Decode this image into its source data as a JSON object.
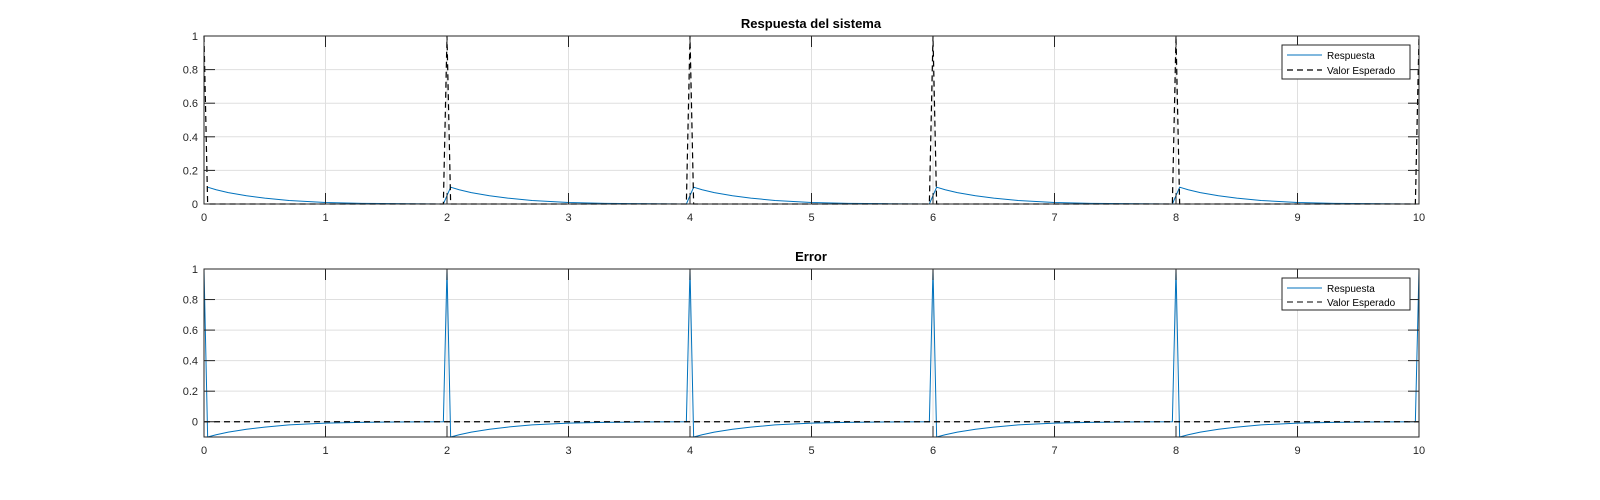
{
  "figure": {
    "background": "#ffffff",
    "axes_color": "#262626",
    "grid_color": "#dfdfdf"
  },
  "chart_data": [
    {
      "type": "line",
      "title": "Respuesta del sistema",
      "xlabel": "",
      "ylabel": "",
      "xlim": [
        0,
        10
      ],
      "ylim": [
        0,
        1
      ],
      "xticks": [
        "0",
        "1",
        "2",
        "3",
        "4",
        "5",
        "6",
        "7",
        "8",
        "9",
        "10"
      ],
      "yticks": [
        "0",
        "0.2",
        "0.4",
        "0.6",
        "0.8",
        "1"
      ],
      "grid": true,
      "legend_position": "top-right",
      "series": [
        {
          "name": "Respuesta",
          "style": "solid",
          "color": "#0072bd",
          "x": [
            0.03,
            0.1,
            0.2,
            0.35,
            0.5,
            0.7,
            1.0,
            1.3,
            1.6,
            1.97,
            2.03,
            2.1,
            2.2,
            2.35,
            2.5,
            2.7,
            3.0,
            3.3,
            3.6,
            3.97,
            4.03,
            4.1,
            4.2,
            4.35,
            4.5,
            4.7,
            5.0,
            5.3,
            5.6,
            5.97,
            6.03,
            6.1,
            6.2,
            6.35,
            6.5,
            6.7,
            7.0,
            7.3,
            7.6,
            7.97,
            8.03,
            8.1,
            8.2,
            8.35,
            8.5,
            8.7,
            9.0,
            9.3,
            9.6,
            9.97
          ],
          "y": [
            0.1,
            0.085,
            0.068,
            0.049,
            0.035,
            0.021,
            0.009,
            0.004,
            0.002,
            0.0,
            0.1,
            0.085,
            0.068,
            0.049,
            0.035,
            0.021,
            0.009,
            0.004,
            0.002,
            0.0,
            0.1,
            0.085,
            0.068,
            0.049,
            0.035,
            0.021,
            0.009,
            0.004,
            0.002,
            0.0,
            0.1,
            0.085,
            0.068,
            0.049,
            0.035,
            0.021,
            0.009,
            0.004,
            0.002,
            0.0,
            0.1,
            0.085,
            0.068,
            0.049,
            0.035,
            0.021,
            0.009,
            0.004,
            0.002,
            0.0
          ]
        },
        {
          "name": "Valor Esperado",
          "style": "dashed",
          "color": "#000000",
          "x": [
            0.0,
            0.03,
            1.97,
            2.0,
            2.03,
            3.97,
            4.0,
            4.03,
            5.97,
            6.0,
            6.03,
            7.97,
            8.0,
            8.03,
            9.97,
            10.0
          ],
          "y": [
            1.0,
            0.0,
            0.0,
            1.0,
            0.0,
            0.0,
            1.0,
            0.0,
            0.0,
            1.0,
            0.0,
            0.0,
            1.0,
            0.0,
            0.0,
            1.0
          ]
        }
      ]
    },
    {
      "type": "line",
      "title": "Error",
      "xlabel": "",
      "ylabel": "",
      "xlim": [
        0,
        10
      ],
      "ylim": [
        -0.1,
        1
      ],
      "xticks": [
        "0",
        "1",
        "2",
        "3",
        "4",
        "5",
        "6",
        "7",
        "8",
        "9",
        "10"
      ],
      "yticks": [
        "0",
        "0.2",
        "0.4",
        "0.6",
        "0.8",
        "1"
      ],
      "grid": true,
      "legend_position": "top-right",
      "series": [
        {
          "name": "Respuesta",
          "style": "solid",
          "color": "#0072bd",
          "x": [
            0.0,
            0.03,
            0.1,
            0.2,
            0.35,
            0.5,
            0.7,
            1.0,
            1.3,
            1.6,
            1.97,
            2.0,
            2.03,
            2.1,
            2.2,
            2.35,
            2.5,
            2.7,
            3.0,
            3.3,
            3.6,
            3.97,
            4.0,
            4.03,
            4.1,
            4.2,
            4.35,
            4.5,
            4.7,
            5.0,
            5.3,
            5.6,
            5.97,
            6.0,
            6.03,
            6.1,
            6.2,
            6.35,
            6.5,
            6.7,
            7.0,
            7.3,
            7.6,
            7.97,
            8.0,
            8.03,
            8.1,
            8.2,
            8.35,
            8.5,
            8.7,
            9.0,
            9.3,
            9.6,
            9.97,
            10.0
          ],
          "y": [
            1.0,
            -0.1,
            -0.085,
            -0.068,
            -0.049,
            -0.035,
            -0.021,
            -0.009,
            -0.004,
            -0.002,
            0.0,
            1.0,
            -0.1,
            -0.085,
            -0.068,
            -0.049,
            -0.035,
            -0.021,
            -0.009,
            -0.004,
            -0.002,
            0.0,
            1.0,
            -0.1,
            -0.085,
            -0.068,
            -0.049,
            -0.035,
            -0.021,
            -0.009,
            -0.004,
            -0.002,
            0.0,
            1.0,
            -0.1,
            -0.085,
            -0.068,
            -0.049,
            -0.035,
            -0.021,
            -0.009,
            -0.004,
            -0.002,
            0.0,
            1.0,
            -0.1,
            -0.085,
            -0.068,
            -0.049,
            -0.035,
            -0.021,
            -0.009,
            -0.004,
            -0.002,
            0.0,
            1.0
          ]
        },
        {
          "name": "Valor Esperado",
          "style": "dashed",
          "color": "#000000",
          "x": [
            0.0,
            10.0
          ],
          "y": [
            0.0,
            0.0
          ]
        }
      ]
    }
  ]
}
